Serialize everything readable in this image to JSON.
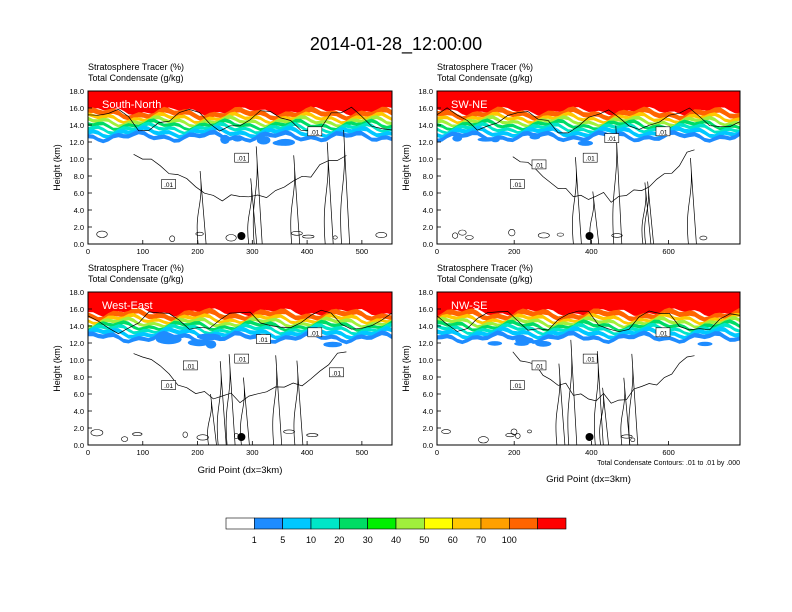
{
  "title": "2014-01-28_12:00:00",
  "colors": {
    "scale": [
      "#ffffff",
      "#1e8cff",
      "#00c8ff",
      "#00e6c8",
      "#00dc64",
      "#00f000",
      "#a0f03c",
      "#ffff00",
      "#ffc800",
      "#ffa000",
      "#ff6400",
      "#ff2a00",
      "#ff0000"
    ]
  },
  "chart_data": [
    {
      "type": "heatmap",
      "title_lines": [
        "Stratosphere Tracer   (%)",
        "Total Condensate   (g/kg)"
      ],
      "label": "South-North",
      "xlabel": "",
      "ylabel": "Height (km)",
      "xlim": [
        0,
        555
      ],
      "ylim": [
        0,
        18
      ],
      "xticks": [
        "0",
        "100",
        "200",
        "300",
        "400",
        "500"
      ],
      "xtick_values": [
        0,
        100,
        200,
        300,
        400,
        500
      ],
      "yticks": [
        "0.0",
        "2.0",
        "4.0",
        "6.0",
        "8.0",
        "10.0",
        "12.0",
        "14.0",
        "16.0",
        "18.0"
      ],
      "contour_labels": [
        ".01",
        ".01",
        ".01"
      ],
      "marker_x": 280
    },
    {
      "type": "heatmap",
      "title_lines": [
        "Stratosphere Tracer   (%)",
        "Total Condensate   (g/kg)"
      ],
      "label": "SW-NE",
      "xlabel": "",
      "ylabel": "Height (km)",
      "xlim": [
        0,
        785
      ],
      "ylim": [
        0,
        18
      ],
      "xticks": [
        "0",
        "200",
        "400",
        "600"
      ],
      "xtick_values": [
        0,
        200,
        400,
        600
      ],
      "yticks": [
        "0.0",
        "2.0",
        "4.0",
        "6.0",
        "8.0",
        "10.0",
        "12.0",
        "14.0",
        "16.0",
        "18.0"
      ],
      "contour_labels": [
        ".01",
        ".01",
        ".01",
        ".01",
        ".01"
      ],
      "marker_x": 395
    },
    {
      "type": "heatmap",
      "title_lines": [
        "Stratosphere Tracer   (%)",
        "Total Condensate   (g/kg)"
      ],
      "label": "West-East",
      "xlabel": "Grid Point (dx=3km)",
      "ylabel": "Height (km)",
      "xlim": [
        0,
        555
      ],
      "ylim": [
        0,
        18
      ],
      "xticks": [
        "0",
        "100",
        "200",
        "300",
        "400",
        "500"
      ],
      "xtick_values": [
        0,
        100,
        200,
        300,
        400,
        500
      ],
      "yticks": [
        "0.0",
        "2.0",
        "4.0",
        "6.0",
        "8.0",
        "10.0",
        "12.0",
        "14.0",
        "16.0",
        "18.0"
      ],
      "contour_labels": [
        ".01",
        ".01",
        ".01",
        ".01",
        ".01",
        ".01"
      ],
      "marker_x": 280
    },
    {
      "type": "heatmap",
      "title_lines": [
        "Stratosphere Tracer   (%)",
        "Total Condensate   (g/kg)"
      ],
      "label": "NW-SE",
      "xlabel": "Grid Point (dx=3km)",
      "ylabel": "Height (km)",
      "xlim": [
        0,
        785
      ],
      "ylim": [
        0,
        18
      ],
      "xticks": [
        "0",
        "200",
        "400",
        "600"
      ],
      "xtick_values": [
        0,
        200,
        400,
        600
      ],
      "yticks": [
        "0.0",
        "2.0",
        "4.0",
        "6.0",
        "8.0",
        "10.0",
        "12.0",
        "14.0",
        "16.0",
        "18.0"
      ],
      "contour_labels": [
        ".01",
        ".01",
        ".01",
        ".01"
      ],
      "marker_x": 395,
      "footnote": "Total Condensate Contours: .01 to .01 by .000"
    }
  ],
  "colorbar": {
    "labels": [
      "1",
      "5",
      "10",
      "20",
      "30",
      "40",
      "50",
      "60",
      "70",
      "100"
    ],
    "colors": [
      "#ffffff",
      "#1e8cff",
      "#00c8ff",
      "#00e6c8",
      "#00dc64",
      "#00f000",
      "#a0f03c",
      "#ffff00",
      "#ffc800",
      "#ffa000",
      "#ff6400",
      "#ff0000"
    ]
  }
}
